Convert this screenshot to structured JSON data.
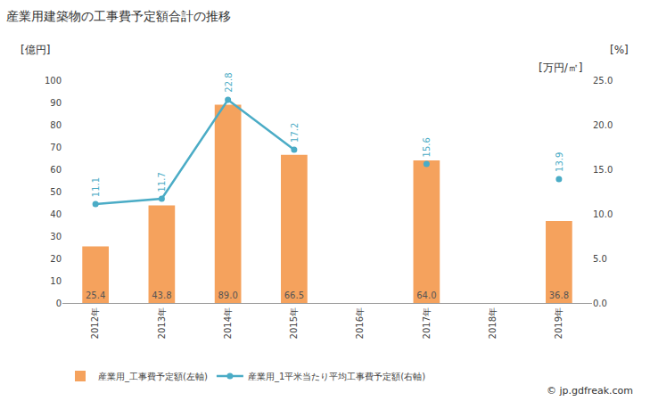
{
  "chart_data": {
    "type": "bar",
    "title": "産業用建築物の工事費予定額合計の推移",
    "ylabel": "[億円]",
    "y2label": "[万円/㎡]",
    "annotations": [
      "[%]",
      "© jp.gdfreak.com"
    ],
    "categories": [
      "2012年",
      "2013年",
      "2014年",
      "2015年",
      "2016年",
      "2017年",
      "2018年",
      "2019年"
    ],
    "series": [
      {
        "name": "産業用_工事費予定額(左軸)",
        "type": "bar",
        "color": "#f5a25d",
        "values": [
          25.4,
          43.8,
          89.0,
          66.5,
          null,
          64.0,
          null,
          36.8
        ],
        "value_labels": [
          "25.4",
          "43.8",
          "89.0",
          "66.5",
          null,
          "64.0",
          null,
          "36.8"
        ]
      },
      {
        "name": "産業用_1平米当たり平均工事費予定額(右軸)",
        "type": "line",
        "color": "#4bacc6",
        "axis": "y2",
        "marker": "circle",
        "values": [
          11.1,
          11.7,
          22.8,
          17.2,
          null,
          15.6,
          null,
          13.9
        ]
      }
    ],
    "ylim": [
      0,
      100
    ],
    "yticks": [
      0,
      10,
      20,
      30,
      40,
      50,
      60,
      70,
      80,
      90,
      100
    ],
    "y2lim": [
      0,
      25
    ],
    "y2ticks": [
      {
        "value": 0,
        "label": "0.0"
      },
      {
        "value": 5,
        "label": "5.0"
      },
      {
        "value": 10,
        "label": "10.0"
      },
      {
        "value": 15,
        "label": "15.0"
      },
      {
        "value": 20,
        "label": "20.0"
      },
      {
        "value": 25,
        "label": "25.0"
      }
    ],
    "data_labels": true,
    "grid": false,
    "legend": "bottom"
  }
}
